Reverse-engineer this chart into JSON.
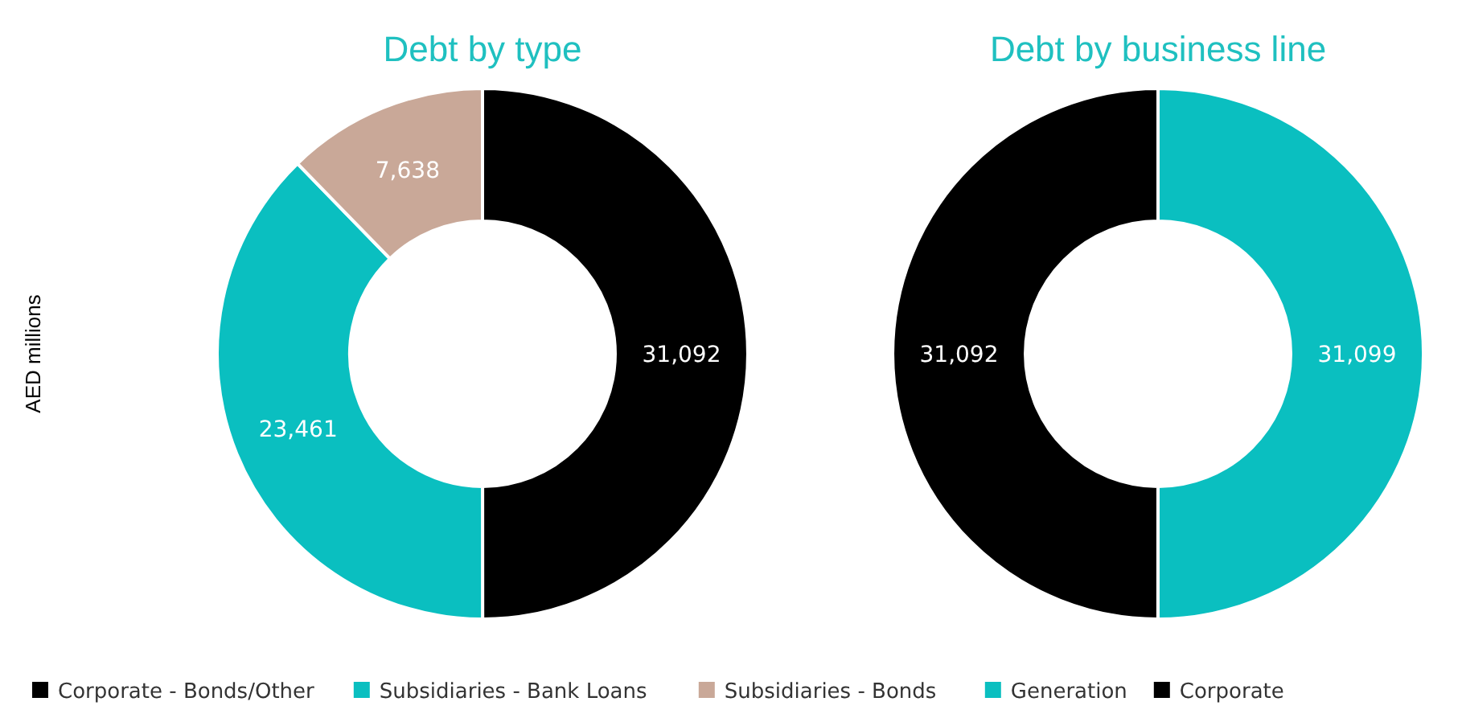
{
  "chart_data": [
    {
      "type": "donut",
      "title": "Debt by type",
      "ylabel": "AED millions",
      "categories": [
        "Corporate - Bonds/Other",
        "Subsidiaries - Bank Loans",
        "Subsidiaries - Bonds"
      ],
      "values": [
        31092,
        23461,
        7638
      ],
      "colors": [
        "#000000",
        "#0abfc0",
        "#c9a898"
      ],
      "value_labels": [
        "31,092",
        "23,461",
        "7,638"
      ],
      "legend": "bottom"
    },
    {
      "type": "donut",
      "title": "Debt by business line",
      "categories": [
        "Generation",
        "Corporate"
      ],
      "values": [
        31099,
        31092
      ],
      "colors": [
        "#0abfc0",
        "#000000"
      ],
      "value_labels": [
        "31,099",
        "31,092"
      ],
      "legend": "bottom"
    }
  ]
}
